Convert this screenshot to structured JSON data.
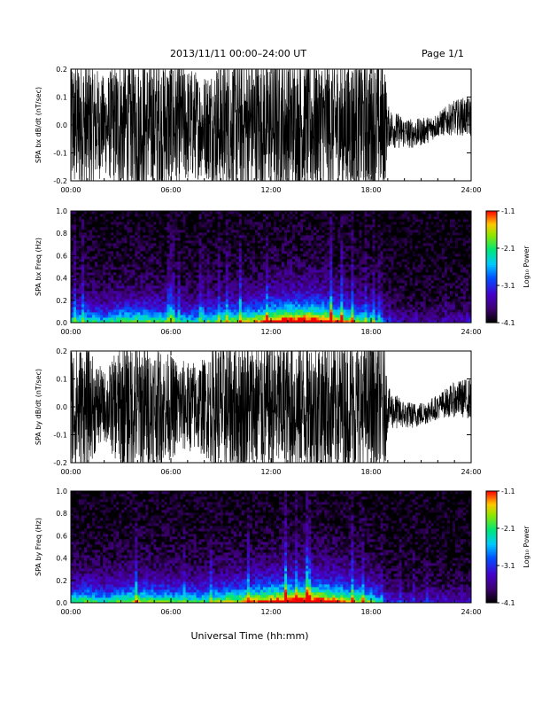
{
  "header": {
    "title": "2013/11/11   00:00–24:00 UT",
    "page": "Page 1/1"
  },
  "footer": {
    "xlabel": "Universal Time (hh:mm)"
  },
  "chart_data": [
    {
      "type": "line",
      "title": "",
      "ylabel": "SPA bx dB/dt (nT/sec)",
      "xlabel": "",
      "x_range_hours": [
        0,
        24
      ],
      "x_ticks": [
        "00:00",
        "06:00",
        "12:00",
        "18:00",
        "24:00"
      ],
      "ylim": [
        -0.2,
        0.2
      ],
      "y_ticks": [
        "-0.2",
        "-0.1",
        "0.0",
        "0.1",
        "0.2"
      ],
      "series": [
        {
          "hours": [
            0,
            1,
            2,
            3,
            4,
            5,
            6,
            7,
            8,
            9,
            10,
            11,
            12,
            13,
            14,
            15,
            16,
            17,
            18,
            18.8,
            19,
            20,
            21,
            22,
            23,
            24
          ],
          "envelope_half_amplitude": [
            0.2,
            0.2,
            0.14,
            0.2,
            0.2,
            0.2,
            0.2,
            0.17,
            0.15,
            0.2,
            0.2,
            0.2,
            0.2,
            0.2,
            0.2,
            0.2,
            0.2,
            0.2,
            0.2,
            0.2,
            0.06,
            0.045,
            0.04,
            0.035,
            0.05,
            0.06
          ]
        }
      ]
    },
    {
      "type": "heatmap",
      "title": "",
      "ylabel": "SPA bx Freq (Hz)",
      "xlabel": "",
      "x_range_hours": [
        0,
        24
      ],
      "x_ticks": [
        "00:00",
        "06:00",
        "12:00",
        "18:00",
        "24:00"
      ],
      "ylim": [
        0,
        1.0
      ],
      "y_ticks": [
        "0.0",
        "0.2",
        "0.4",
        "0.6",
        "0.8",
        "1.0"
      ],
      "colorbar": {
        "label": "Log₁₀ Power",
        "range": [
          -4.1,
          -1.1
        ],
        "ticks": [
          "-1.1",
          "-2.1",
          "-3.1",
          "-4.1"
        ]
      },
      "activity_by_hour": [
        0.45,
        0.5,
        0.42,
        0.55,
        0.55,
        0.55,
        0.5,
        0.45,
        0.45,
        0.55,
        0.6,
        0.65,
        0.8,
        0.85,
        0.9,
        0.85,
        0.75,
        0.6,
        0.5,
        0.2,
        0.15,
        0.15,
        0.15,
        0.18,
        0.2
      ]
    },
    {
      "type": "line",
      "title": "",
      "ylabel": "SPA by dB/dt (nT/sec)",
      "xlabel": "",
      "x_range_hours": [
        0,
        24
      ],
      "x_ticks": [
        "00:00",
        "06:00",
        "12:00",
        "18:00",
        "24:00"
      ],
      "ylim": [
        -0.2,
        0.2
      ],
      "y_ticks": [
        "-0.2",
        "-0.1",
        "0.0",
        "0.1",
        "0.2"
      ],
      "series": [
        {
          "hours": [
            0,
            1,
            2,
            3,
            4,
            5,
            6,
            7,
            8,
            9,
            10,
            11,
            12,
            13,
            14,
            15,
            16,
            17,
            18,
            18.8,
            19,
            20,
            21,
            22,
            23,
            24
          ],
          "envelope_half_amplitude": [
            0.2,
            0.17,
            0.1,
            0.18,
            0.2,
            0.18,
            0.15,
            0.13,
            0.14,
            0.2,
            0.2,
            0.2,
            0.2,
            0.2,
            0.2,
            0.2,
            0.2,
            0.2,
            0.2,
            0.2,
            0.06,
            0.04,
            0.035,
            0.035,
            0.05,
            0.06
          ]
        }
      ]
    },
    {
      "type": "heatmap",
      "title": "",
      "ylabel": "SPA by Freq (Hz)",
      "xlabel": "",
      "x_range_hours": [
        0,
        24
      ],
      "x_ticks": [
        "00:00",
        "06:00",
        "12:00",
        "18:00",
        "24:00"
      ],
      "ylim": [
        0,
        1.0
      ],
      "y_ticks": [
        "0.0",
        "0.2",
        "0.4",
        "0.6",
        "0.8",
        "1.0"
      ],
      "colorbar": {
        "label": "Log₁₀ Power",
        "range": [
          -4.1,
          -1.1
        ],
        "ticks": [
          "-1.1",
          "-2.1",
          "-3.1",
          "-4.1"
        ]
      },
      "activity_by_hour": [
        0.5,
        0.55,
        0.45,
        0.55,
        0.6,
        0.55,
        0.55,
        0.5,
        0.5,
        0.6,
        0.65,
        0.7,
        0.8,
        0.85,
        0.9,
        0.85,
        0.75,
        0.65,
        0.55,
        0.25,
        0.2,
        0.2,
        0.2,
        0.2,
        0.22
      ]
    }
  ]
}
